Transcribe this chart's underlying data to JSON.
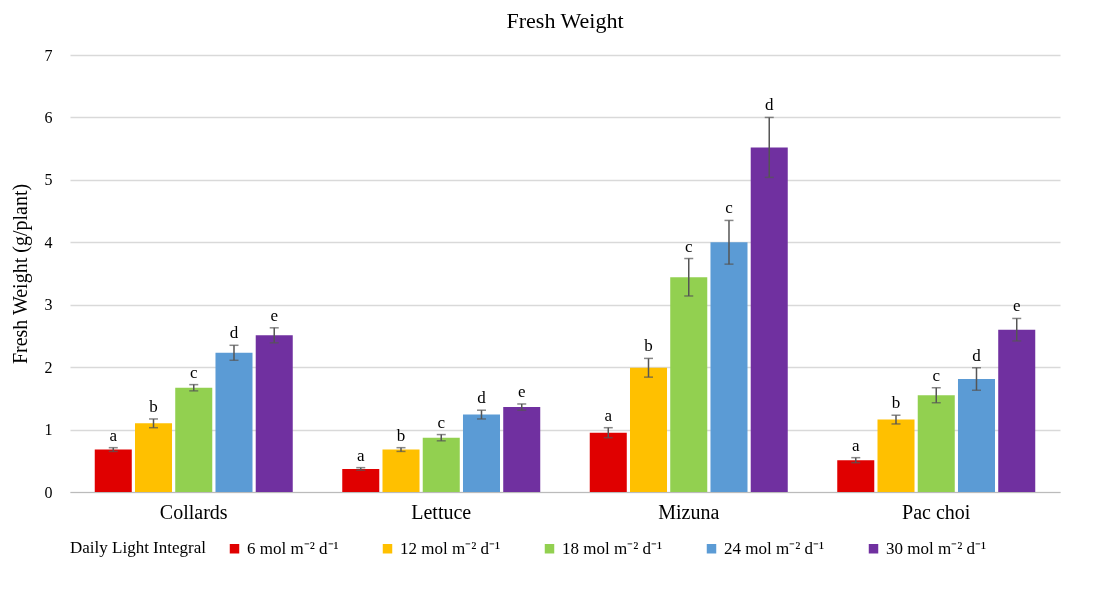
{
  "chart_data": {
    "type": "bar",
    "title": "Fresh Weight",
    "ylabel": "Fresh Weight (g/plant)",
    "legend_title": "Daily Light Integral",
    "legend": "bottom",
    "grid": "y",
    "categories": [
      "Collards",
      "Lettuce",
      "Mizuna",
      "Pac choi"
    ],
    "ylim": [
      0,
      7
    ],
    "yticks": [
      0,
      1,
      2,
      3,
      4,
      5,
      6,
      7
    ],
    "series": [
      {
        "name": "6 mol m⁻² d⁻¹",
        "color": "#e00000",
        "values": [
          0.68,
          0.37,
          0.95,
          0.51
        ],
        "errors": [
          0.03,
          0.02,
          0.08,
          0.04
        ],
        "value_labels": [
          "a",
          "a",
          "a",
          "a"
        ]
      },
      {
        "name": "12 mol m⁻² d⁻¹",
        "color": "#ffc000",
        "values": [
          1.1,
          0.68,
          1.99,
          1.16
        ],
        "errors": [
          0.07,
          0.03,
          0.15,
          0.07
        ],
        "value_labels": [
          "b",
          "b",
          "b",
          "b"
        ]
      },
      {
        "name": "18 mol m⁻² d⁻¹",
        "color": "#92d050",
        "values": [
          1.67,
          0.87,
          3.44,
          1.55
        ],
        "errors": [
          0.05,
          0.05,
          0.3,
          0.12
        ],
        "value_labels": [
          "c",
          "c",
          "c",
          "c"
        ]
      },
      {
        "name": "24 mol m⁻² d⁻¹",
        "color": "#5b9bd5",
        "values": [
          2.23,
          1.24,
          4.0,
          1.81
        ],
        "errors": [
          0.12,
          0.07,
          0.35,
          0.18
        ],
        "value_labels": [
          "d",
          "d",
          "c",
          "d"
        ]
      },
      {
        "name": "30 mol m⁻² d⁻¹",
        "color": "#7030a0",
        "values": [
          2.51,
          1.36,
          5.52,
          2.6
        ],
        "errors": [
          0.12,
          0.05,
          0.48,
          0.18
        ],
        "value_labels": [
          "e",
          "e",
          "d",
          "e"
        ]
      }
    ]
  }
}
